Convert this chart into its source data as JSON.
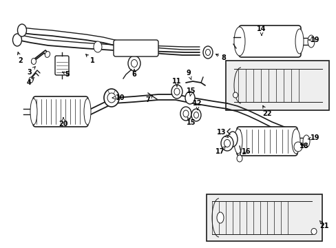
{
  "background_color": "#ffffff",
  "line_color": "#1a1a1a",
  "figsize": [
    4.89,
    3.6
  ],
  "dpi": 100,
  "label_positions": {
    "1": [
      1.32,
      2.88,
      1.22,
      2.96
    ],
    "2": [
      0.3,
      2.92,
      0.22,
      3.0
    ],
    "3": [
      0.42,
      3.3,
      0.52,
      3.22
    ],
    "4": [
      0.42,
      3.05,
      0.5,
      3.12
    ],
    "5": [
      0.98,
      3.3,
      0.98,
      3.2
    ],
    "6": [
      1.95,
      3.32,
      1.95,
      3.22
    ],
    "7": [
      2.12,
      2.2,
      2.2,
      2.28
    ],
    "8": [
      3.32,
      2.9,
      3.2,
      2.93
    ],
    "9": [
      2.72,
      2.1,
      2.65,
      2.17
    ],
    "10": [
      1.75,
      2.18,
      1.62,
      2.18
    ],
    "11": [
      2.52,
      2.05,
      2.52,
      2.14
    ],
    "12": [
      2.85,
      2.38,
      2.75,
      2.35
    ],
    "13": [
      3.2,
      2.55,
      3.12,
      2.5
    ],
    "14": [
      3.68,
      0.72,
      3.68,
      0.8
    ],
    "15a": [
      2.75,
      2.42,
      2.68,
      2.37
    ],
    "15b": [
      2.85,
      2.2,
      2.76,
      2.24
    ],
    "16": [
      3.38,
      2.72,
      3.3,
      2.65
    ],
    "17": [
      3.22,
      2.72,
      3.14,
      2.65
    ],
    "18": [
      4.28,
      2.52,
      4.18,
      2.48
    ],
    "19a": [
      4.42,
      2.4,
      4.35,
      2.42
    ],
    "19b": [
      4.42,
      0.82,
      4.35,
      0.86
    ],
    "20": [
      0.92,
      2.45,
      0.92,
      2.38
    ],
    "21": [
      4.72,
      3.28,
      4.65,
      3.25
    ],
    "22": [
      3.85,
      2.1,
      3.78,
      2.18
    ]
  }
}
